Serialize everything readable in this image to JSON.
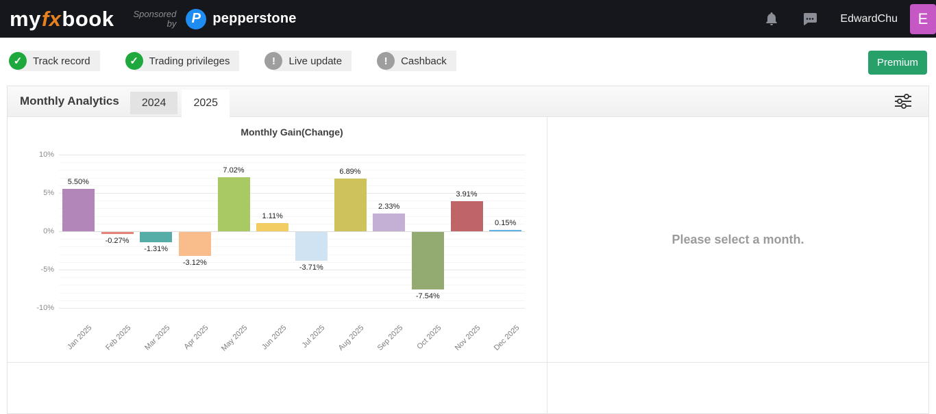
{
  "header": {
    "logo_my": "my",
    "logo_fx": "fx",
    "logo_book": "book",
    "sponsored_line1": "Sponsored",
    "sponsored_line2": "by",
    "sponsor_initial": "P",
    "sponsor_name": "pepperstone",
    "username": "EdwardChu",
    "avatar_letter": "E",
    "avatar_color": "#c558c5"
  },
  "verification": {
    "badges": [
      {
        "label": "Track record",
        "status": "verified"
      },
      {
        "label": "Trading privileges",
        "status": "verified"
      },
      {
        "label": "Live update",
        "status": "warning"
      },
      {
        "label": "Cashback",
        "status": "warning"
      }
    ],
    "premium_label": "Premium"
  },
  "panel": {
    "title": "Monthly Analytics",
    "tabs": [
      {
        "label": "2024",
        "active": false
      },
      {
        "label": "2025",
        "active": true
      }
    ],
    "message": "Please select a month."
  },
  "chart_data": {
    "type": "bar",
    "title": "Monthly Gain(Change)",
    "categories": [
      "Jan 2025",
      "Feb 2025",
      "Mar 2025",
      "Apr 2025",
      "May 2025",
      "Jun 2025",
      "Jul 2025",
      "Aug 2025",
      "Sep 2025",
      "Oct 2025",
      "Nov 2025",
      "Dec 2025"
    ],
    "values": [
      5.5,
      -0.27,
      -1.31,
      -3.12,
      7.02,
      1.11,
      -3.71,
      6.89,
      2.33,
      -7.54,
      3.91,
      0.15
    ],
    "value_labels": [
      "5.50%",
      "-0.27%",
      "-1.31%",
      "-3.12%",
      "7.02%",
      "1.11%",
      "-3.71%",
      "6.89%",
      "2.33%",
      "-7.54%",
      "3.91%",
      "0.15%"
    ],
    "bar_colors": [
      "#b286b8",
      "#e8837c",
      "#56aca6",
      "#f9bd8c",
      "#a9c965",
      "#f1cd62",
      "#cfe3f3",
      "#cdc25c",
      "#c5b0d5",
      "#93ab71",
      "#bf6467",
      "#5fb2e5"
    ],
    "xlabel": "",
    "ylabel": "",
    "ylim": [
      -10,
      10
    ],
    "yticks": [
      10,
      5,
      0,
      -5,
      -10
    ],
    "ytick_labels": [
      "10%",
      "5%",
      "0%",
      "-5%",
      "-10%"
    ],
    "grid": true,
    "legend": null
  }
}
